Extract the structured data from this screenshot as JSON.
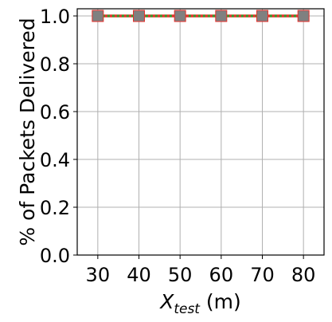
{
  "chart_data": {
    "type": "line",
    "x": [
      30,
      40,
      50,
      60,
      70,
      80
    ],
    "xticks": [
      "30",
      "40",
      "50",
      "60",
      "70",
      "80"
    ],
    "yticks": [
      "0.0",
      "0.2",
      "0.4",
      "0.6",
      "0.8",
      "1.0"
    ],
    "ytick_values": [
      0.0,
      0.2,
      0.4,
      0.6,
      0.8,
      1.0
    ],
    "xlim": [
      25,
      85
    ],
    "ylim": [
      0,
      1.03
    ],
    "xlabel_main": "X",
    "xlabel_sub": "test",
    "xlabel_unit": " (m)",
    "ylabel": "% of Packets Delivered",
    "grid": true,
    "series": [
      {
        "values": [
          1,
          1,
          1,
          1,
          1,
          1
        ],
        "color": "#e8312b",
        "marker": "square",
        "line_style": "solid"
      },
      {
        "values": [
          1,
          1,
          1,
          1,
          1,
          1
        ],
        "color": "#808080",
        "marker": "square",
        "line_style": "dotted",
        "line_color": "#2ca02c"
      }
    ]
  }
}
